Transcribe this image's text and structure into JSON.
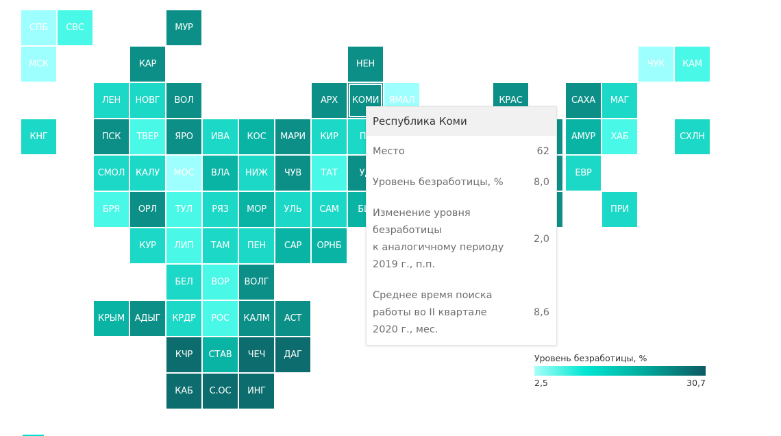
{
  "map_data": {
    "colors": [
      "#9effff",
      "#4af8e8",
      "#1cd8c6",
      "#0ab4a5",
      "#0b8f87",
      "#0d6c6d"
    ],
    "rows": [
      [
        {
          "label": "СПБ",
          "c": 0
        },
        {
          "label": "СВС",
          "c": 1
        },
        null,
        null,
        {
          "label": "МУР",
          "c": 4
        }
      ],
      [
        {
          "label": "МСК",
          "c": 0
        },
        null,
        null,
        {
          "label": "КАР",
          "c": 4
        },
        null,
        null,
        null,
        null,
        null,
        {
          "label": "НЕН",
          "c": 4
        },
        null,
        null,
        null,
        null,
        null,
        null,
        null,
        {
          "label": "ЧУК",
          "c": 0
        },
        {
          "label": "КАМ",
          "c": 1
        }
      ],
      [
        null,
        null,
        {
          "label": "ЛЕН",
          "c": 2
        },
        {
          "label": "НОВГ",
          "c": 2
        },
        {
          "label": "ВОЛ",
          "c": 4
        },
        null,
        null,
        null,
        {
          "label": "АРХ",
          "c": 4
        },
        {
          "label": "КОМИ",
          "c": 4,
          "selected": true
        },
        {
          "label": "ЯМАЛ",
          "c": 0
        },
        null,
        null,
        {
          "label": "КРАС",
          "c": 4
        },
        null,
        {
          "label": "САХА",
          "c": 4
        },
        {
          "label": "МАГ",
          "c": 2
        }
      ],
      [
        {
          "label": "КНГ",
          "c": 2
        },
        null,
        {
          "label": "ПСК",
          "c": 4
        },
        {
          "label": "ТВЕР",
          "c": 1
        },
        {
          "label": "ЯРО",
          "c": 4
        },
        {
          "label": "ИВА",
          "c": 2
        },
        {
          "label": "КОС",
          "c": 3
        },
        {
          "label": "МАРИ",
          "c": 4
        },
        {
          "label": "КИР",
          "c": 2
        },
        {
          "label": "ПЕ",
          "c": 2
        },
        null,
        null,
        null,
        null,
        null,
        {
          "label": "АМУР",
          "c": 3
        },
        {
          "label": "ХАБ",
          "c": 1
        },
        null,
        {
          "label": "СХЛН",
          "c": 2
        }
      ],
      [
        null,
        null,
        {
          "label": "СМОЛ",
          "c": 2
        },
        {
          "label": "КАЛУ",
          "c": 2
        },
        {
          "label": "МОС",
          "c": 0
        },
        {
          "label": "ВЛА",
          "c": 3
        },
        {
          "label": "НИЖ",
          "c": 2
        },
        {
          "label": "ЧУВ",
          "c": 4
        },
        {
          "label": "ТАТ",
          "c": 1
        },
        {
          "label": "УД",
          "c": 4
        },
        null,
        null,
        null,
        null,
        null,
        {
          "label": "ЕВР",
          "c": 2
        }
      ],
      [
        null,
        null,
        {
          "label": "БРЯ",
          "c": 1
        },
        {
          "label": "ОРЛ",
          "c": 4
        },
        {
          "label": "ТУЛ",
          "c": 1
        },
        {
          "label": "РЯЗ",
          "c": 2
        },
        {
          "label": "МОР",
          "c": 3
        },
        {
          "label": "УЛЬ",
          "c": 2
        },
        {
          "label": "САМ",
          "c": 2
        },
        {
          "label": "БШ",
          "c": 3
        },
        null,
        null,
        null,
        null,
        null,
        null,
        {
          "label": "ПРИ",
          "c": 2
        }
      ],
      [
        null,
        null,
        null,
        {
          "label": "КУР",
          "c": 2
        },
        {
          "label": "ЛИП",
          "c": 1
        },
        {
          "label": "ТАМ",
          "c": 2
        },
        {
          "label": "ПЕН",
          "c": 2
        },
        {
          "label": "САР",
          "c": 3
        },
        {
          "label": "ОРНБ",
          "c": 3
        }
      ],
      [
        null,
        null,
        null,
        null,
        {
          "label": "БЕЛ",
          "c": 2
        },
        {
          "label": "ВОР",
          "c": 1
        },
        {
          "label": "ВОЛГ",
          "c": 4
        }
      ],
      [
        null,
        null,
        {
          "label": "КРЫМ",
          "c": 3
        },
        {
          "label": "АДЫГ",
          "c": 4
        },
        {
          "label": "КРДР",
          "c": 2
        },
        {
          "label": "РОС",
          "c": 1
        },
        {
          "label": "КАЛМ",
          "c": 4
        },
        {
          "label": "АСТ",
          "c": 4
        }
      ],
      [
        null,
        null,
        null,
        null,
        {
          "label": "КЧР",
          "c": 5
        },
        {
          "label": "СТАВ",
          "c": 3
        },
        {
          "label": "ЧЕЧ",
          "c": 5
        },
        {
          "label": "ДАГ",
          "c": 5
        }
      ],
      [
        null,
        null,
        null,
        null,
        {
          "label": "КАБ",
          "c": 5
        },
        {
          "label": "С.ОС",
          "c": 5
        },
        {
          "label": "ИНГ",
          "c": 5
        }
      ]
    ],
    "hidden_tail": [
      {
        "row": 3,
        "col": 15,
        "c": 4
      },
      {
        "row": 4,
        "col": 15,
        "c": 4
      },
      {
        "row": 5,
        "col": 15,
        "c": 4
      }
    ]
  },
  "tooltip": {
    "title": "Республика Коми",
    "rows": [
      {
        "label": "Место",
        "value": "62"
      },
      {
        "label": "Уровень безработицы, %",
        "value": "8,0"
      },
      {
        "label": "Изменение уровня\nбезработицы\nк аналогичному периоду\n2019 г., п.п.",
        "value": "2,0"
      },
      {
        "label": "Среднее время поиска\nработы во II квартале\n2020 г., мес.",
        "value": "8,6"
      }
    ]
  },
  "legend": {
    "title": "Уровень безработицы, %",
    "min": "2,5",
    "max": "30,7"
  }
}
